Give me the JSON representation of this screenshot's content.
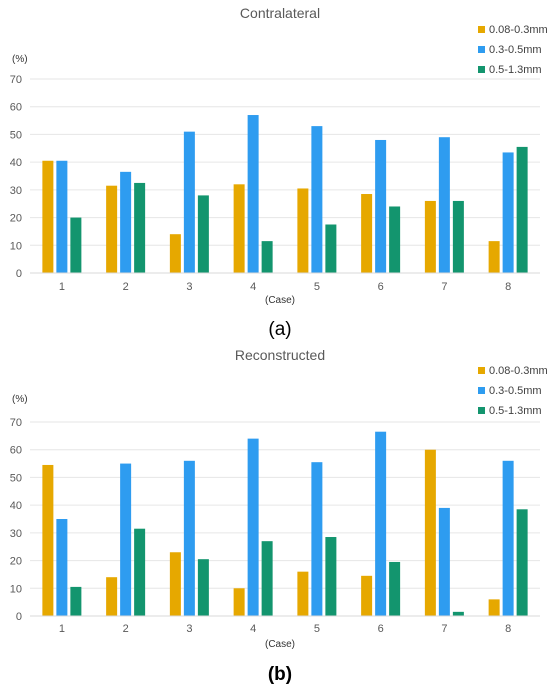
{
  "colors": {
    "series1": "#e6a800",
    "series2": "#2e9cf0",
    "series3": "#13956e"
  },
  "chart_data": [
    {
      "type": "bar",
      "title": "Contralateral",
      "ylabel": "(%)",
      "xlabel": "(Case)",
      "panel": "(a)",
      "categories": [
        "1",
        "2",
        "3",
        "4",
        "5",
        "6",
        "7",
        "8"
      ],
      "ylim": [
        0,
        70
      ],
      "yticks": [
        "0",
        "10",
        "20",
        "30",
        "40",
        "50",
        "60",
        "70"
      ],
      "grid": true,
      "legend_position": "top-right",
      "series": [
        {
          "name": "0.08-0.3mm",
          "values": [
            40.5,
            31.5,
            14,
            32,
            30.5,
            28.5,
            26,
            11.5
          ]
        },
        {
          "name": "0.3-0.5mm",
          "values": [
            40.5,
            36.5,
            51,
            57,
            53,
            48,
            49,
            43.5
          ]
        },
        {
          "name": "0.5-1.3mm",
          "values": [
            20,
            32.5,
            28,
            11.5,
            17.5,
            24,
            26,
            45.5
          ]
        }
      ]
    },
    {
      "type": "bar",
      "title": "Reconstructed",
      "ylabel": "(%)",
      "xlabel": "(Case)",
      "panel": "(b)",
      "categories": [
        "1",
        "2",
        "3",
        "4",
        "5",
        "6",
        "7",
        "8"
      ],
      "ylim": [
        0,
        70
      ],
      "yticks": [
        "0",
        "10",
        "20",
        "30",
        "40",
        "50",
        "60",
        "70"
      ],
      "grid": true,
      "legend_position": "top-right",
      "series": [
        {
          "name": "0.08-0.3mm",
          "values": [
            54.5,
            14,
            23,
            10,
            16,
            14.5,
            60,
            6
          ]
        },
        {
          "name": "0.3-0.5mm",
          "values": [
            35,
            55,
            56,
            64,
            55.5,
            66.5,
            39,
            56
          ]
        },
        {
          "name": "0.5-1.3mm",
          "values": [
            10.5,
            31.5,
            20.5,
            27,
            28.5,
            19.5,
            1.5,
            38.5
          ]
        }
      ]
    }
  ]
}
